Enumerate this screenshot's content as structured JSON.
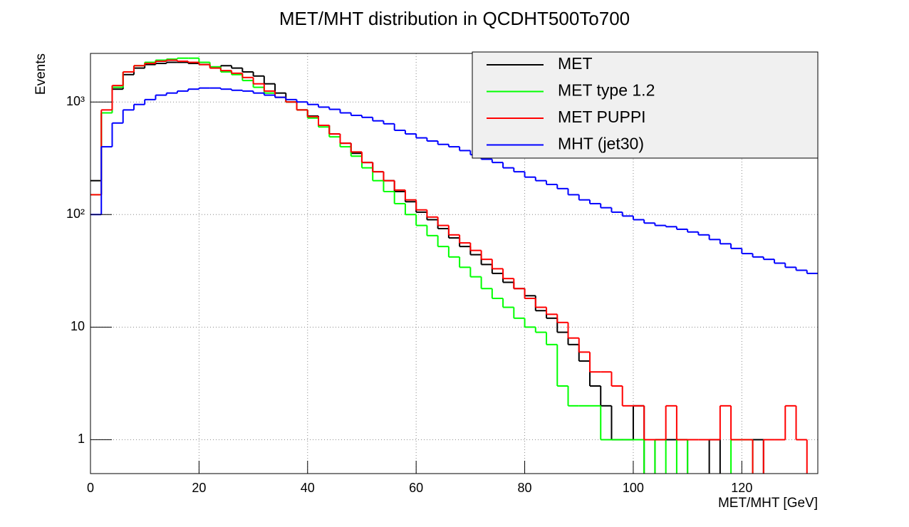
{
  "chart_data": {
    "type": "histogram",
    "title": "MET/MHT distribution in QCDHT500To700",
    "x_label": "MET/MHT [GeV]",
    "y_label": "Events",
    "log_y": true,
    "grid": true,
    "xlim": [
      0,
      134
    ],
    "ylim": [
      0.5,
      2700
    ],
    "xticks": [
      0,
      20,
      40,
      60,
      80,
      100,
      120
    ],
    "yticks": [
      1,
      10,
      {
        "value": 100,
        "label": "10²"
      },
      {
        "value": 1000,
        "label": "10³"
      }
    ],
    "bins": [
      0,
      2,
      4,
      6,
      8,
      10,
      12,
      14,
      16,
      18,
      20,
      22,
      24,
      26,
      28,
      30,
      32,
      34,
      36,
      38,
      40,
      42,
      44,
      46,
      48,
      50,
      52,
      54,
      56,
      58,
      60,
      62,
      64,
      66,
      68,
      70,
      72,
      74,
      76,
      78,
      80,
      82,
      84,
      86,
      88,
      90,
      92,
      94,
      96,
      98,
      100,
      102,
      104,
      106,
      108,
      110,
      112,
      114,
      116,
      118,
      120,
      122,
      124,
      126,
      128,
      130,
      132,
      134
    ],
    "series": [
      {
        "name": "MET",
        "color": "#000000",
        "values": [
          200,
          800,
          1300,
          1750,
          2000,
          2150,
          2200,
          2250,
          2250,
          2200,
          2150,
          2050,
          2100,
          2000,
          1850,
          1700,
          1450,
          1200,
          1000,
          850,
          750,
          620,
          520,
          430,
          350,
          290,
          240,
          200,
          160,
          130,
          105,
          90,
          75,
          62,
          52,
          44,
          36,
          30,
          25,
          22,
          19,
          14,
          12,
          9,
          7,
          5,
          3,
          2,
          1,
          1,
          2,
          0,
          1,
          1,
          1,
          0,
          0,
          1,
          0,
          0,
          0,
          1,
          0,
          0,
          0,
          0,
          0
        ]
      },
      {
        "name": "MET type 1.2",
        "color": "#00ff00",
        "values": [
          150,
          800,
          1350,
          1850,
          2100,
          2250,
          2350,
          2400,
          2450,
          2450,
          2250,
          2050,
          1850,
          1750,
          1550,
          1350,
          1200,
          1100,
          1000,
          850,
          720,
          600,
          490,
          400,
          330,
          260,
          200,
          160,
          125,
          100,
          80,
          65,
          52,
          42,
          34,
          28,
          22,
          18,
          15,
          12,
          10,
          9,
          7,
          3,
          2,
          2,
          2,
          1,
          1,
          1,
          1,
          0,
          1,
          0,
          1,
          0,
          0,
          0,
          0,
          1,
          1,
          0,
          0,
          0,
          0,
          0,
          0
        ]
      },
      {
        "name": "MET PUPPI",
        "color": "#ff0000",
        "values": [
          150,
          850,
          1400,
          1850,
          2100,
          2200,
          2300,
          2350,
          2300,
          2250,
          2150,
          2000,
          1900,
          1800,
          1650,
          1450,
          1250,
          1100,
          1000,
          850,
          740,
          620,
          520,
          430,
          360,
          290,
          240,
          200,
          165,
          135,
          110,
          95,
          80,
          66,
          56,
          48,
          40,
          33,
          27,
          22,
          18,
          15,
          13,
          11,
          8,
          6,
          4,
          4,
          3,
          2,
          2,
          1,
          1,
          2,
          1,
          1,
          1,
          1,
          2,
          1,
          1,
          0,
          1,
          1,
          2,
          1,
          0
        ]
      },
      {
        "name": "MHT (jet30)",
        "color": "#0000ff",
        "values": [
          100,
          400,
          650,
          850,
          950,
          1050,
          1150,
          1200,
          1250,
          1300,
          1330,
          1330,
          1300,
          1270,
          1250,
          1200,
          1150,
          1100,
          1050,
          1000,
          950,
          900,
          860,
          800,
          760,
          730,
          680,
          640,
          560,
          520,
          480,
          450,
          420,
          400,
          370,
          340,
          310,
          290,
          260,
          240,
          215,
          200,
          185,
          170,
          150,
          135,
          125,
          115,
          105,
          97,
          90,
          84,
          80,
          78,
          74,
          70,
          66,
          60,
          55,
          50,
          45,
          42,
          40,
          37,
          34,
          32,
          30
        ]
      }
    ],
    "legend_position": "top-right"
  }
}
